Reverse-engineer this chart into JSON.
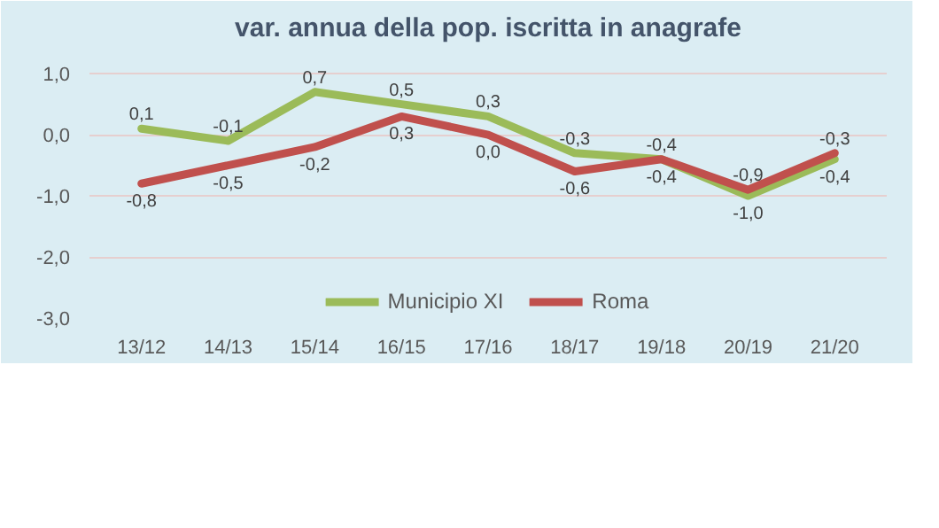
{
  "chart_data": {
    "type": "line",
    "title": "var. annua della pop. iscritta in anagrafe",
    "categories": [
      "13/12",
      "14/13",
      "15/14",
      "16/15",
      "17/16",
      "18/17",
      "19/18",
      "20/19",
      "21/20"
    ],
    "series": [
      {
        "name": "Municipio XI",
        "color": "#9bbb59",
        "values": [
          0.1,
          -0.1,
          0.7,
          0.5,
          0.3,
          -0.3,
          -0.4,
          -1.0,
          -0.4
        ],
        "value_labels": [
          "0,1",
          "-0,1",
          "0,7",
          "0,5",
          "0,3",
          "-0,3",
          "-0,4",
          "-1,0",
          "-0,4"
        ]
      },
      {
        "name": "Roma",
        "color": "#c0504d",
        "values": [
          -0.8,
          -0.5,
          -0.2,
          0.3,
          0.0,
          -0.6,
          -0.4,
          -0.9,
          -0.3
        ],
        "value_labels": [
          "-0,8",
          "-0,5",
          "-0,2",
          "0,3",
          "0,0",
          "-0,6",
          "-0,4",
          "-0,9",
          "-0,3"
        ]
      }
    ],
    "ylim": [
      -3.0,
      1.0
    ],
    "yticks": [
      {
        "value": -3.0,
        "label": "-3,0"
      },
      {
        "value": -2.0,
        "label": "-2,0"
      },
      {
        "value": -1.0,
        "label": "-1,0"
      },
      {
        "value": 0.0,
        "label": "0,0"
      },
      {
        "value": 1.0,
        "label": "1,0"
      }
    ],
    "grid": "y",
    "legend": "bottom",
    "line_style": "solid",
    "marker": "none"
  }
}
